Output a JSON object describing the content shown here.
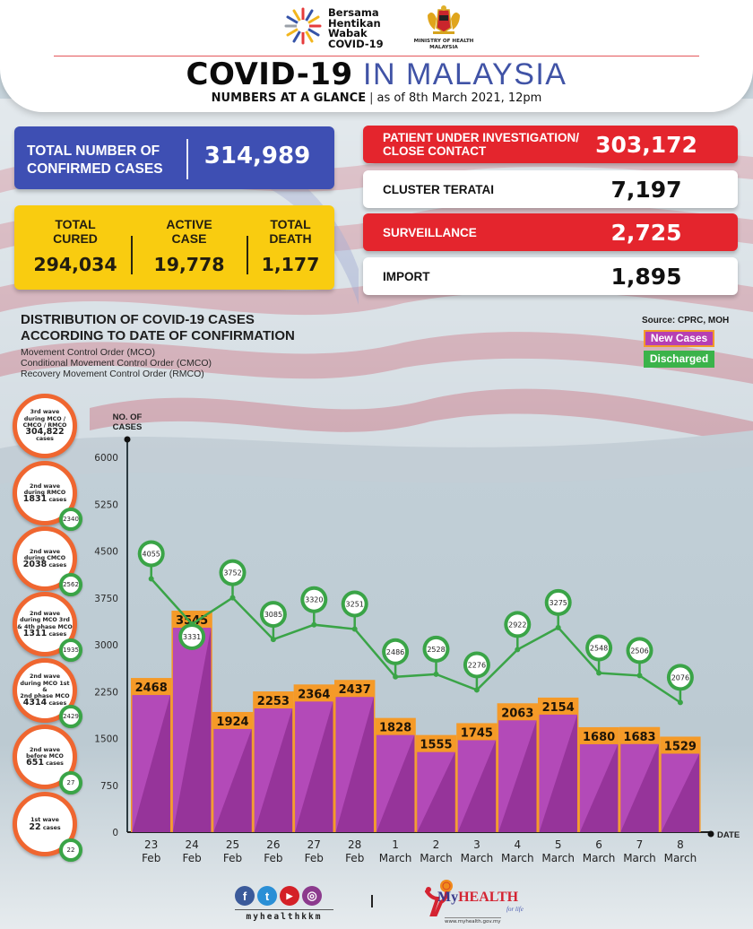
{
  "header": {
    "campaign_logo_text": [
      "Bersama",
      "Hentikan",
      "Wabak",
      "COVID-19"
    ],
    "ministry_logo_text": [
      "MINISTRY OF HEALTH",
      "MALAYSIA"
    ],
    "title_bold": "COVID-19",
    "title_light": "IN MALAYSIA",
    "subtitle_bold": "NUMBERS AT A GLANCE",
    "subtitle_separator": "|",
    "subtitle_date": "as of 8th March 2021, 12pm"
  },
  "stats": {
    "confirmed": {
      "label": "TOTAL NUMBER OF CONFIRMED CASES",
      "value": "314,989"
    },
    "cured": {
      "label": "TOTAL CURED",
      "value": "294,034"
    },
    "active": {
      "label": "ACTIVE CASE",
      "value": "19,778"
    },
    "death": {
      "label": "TOTAL DEATH",
      "value": "1,177"
    },
    "pui": {
      "label": "PATIENT UNDER INVESTIGATION/ CLOSE CONTACT",
      "value": "303,172"
    },
    "teratai": {
      "label": "CLUSTER TERATAI",
      "value": "7,197"
    },
    "surveillance": {
      "label": "SURVEILLANCE",
      "value": "2,725"
    },
    "import": {
      "label": "IMPORT",
      "value": "1,895"
    }
  },
  "colors": {
    "confirmed": "#3e4fb3",
    "yellow": "#f9cc10",
    "red": "#e4252d",
    "bar": "#b34ab8",
    "bar_dark": "#96349a",
    "bar_cap": "#f59a28",
    "discharged": "#3aa447",
    "wave_ring": "#ef6630"
  },
  "waves": [
    {
      "lines": [
        "3rd wave",
        "during MCO /",
        "CMCO / RMCO"
      ],
      "count": "304,822",
      "unit": "cases",
      "count_inline": false,
      "discharged": null
    },
    {
      "lines": [
        "2nd wave",
        "during RMCO"
      ],
      "count": "1831",
      "unit": "cases",
      "count_inline": true,
      "discharged": "2340"
    },
    {
      "lines": [
        "2nd wave",
        "during CMCO"
      ],
      "count": "2038",
      "unit": "cases",
      "count_inline": true,
      "discharged": "2562"
    },
    {
      "lines": [
        "2nd wave",
        "during MCO 3rd",
        "& 4th phase MCO"
      ],
      "count": "1311",
      "unit": "cases",
      "count_inline": true,
      "discharged": "1935"
    },
    {
      "lines": [
        "2nd wave",
        "during MCO 1st &",
        "2nd phase MCO"
      ],
      "count": "4314",
      "unit": "cases",
      "count_inline": true,
      "discharged": "2429"
    },
    {
      "lines": [
        "2nd wave",
        "before MCO"
      ],
      "count": "651",
      "unit": "cases",
      "count_inline": true,
      "discharged": "27"
    },
    {
      "lines": [
        "1st wave"
      ],
      "count": "22",
      "unit": "cases",
      "count_inline": true,
      "discharged": "22"
    }
  ],
  "chart_data": {
    "type": "bar",
    "title": "DISTRIBUTION OF COVID-19 CASES ACCORDING TO DATE OF CONFIRMATION",
    "subtitle_lines": [
      "Movement Control Order (MCO)",
      "Conditional Movement Control Order (CMCO)",
      "Recovery Movement Control Order (RMCO)"
    ],
    "source": "Source: CPRC, MOH",
    "legend": [
      {
        "name": "New Cases",
        "color": "#b34ab8"
      },
      {
        "name": "Discharged",
        "color": "#3aa447"
      }
    ],
    "legend_position": "top-right",
    "ylabel": "NO. OF CASES",
    "xlabel": "DATE",
    "ylim": [
      0,
      6000
    ],
    "yticks": [
      0,
      750,
      1500,
      2250,
      3000,
      3750,
      4500,
      5250,
      6000
    ],
    "categories": [
      [
        "23",
        "Feb"
      ],
      [
        "24",
        "Feb"
      ],
      [
        "25",
        "Feb"
      ],
      [
        "26",
        "Feb"
      ],
      [
        "27",
        "Feb"
      ],
      [
        "28",
        "Feb"
      ],
      [
        "1",
        "March"
      ],
      [
        "2",
        "March"
      ],
      [
        "3",
        "March"
      ],
      [
        "4",
        "March"
      ],
      [
        "5",
        "March"
      ],
      [
        "6",
        "March"
      ],
      [
        "7",
        "March"
      ],
      [
        "8",
        "March"
      ]
    ],
    "series": [
      {
        "name": "New Cases",
        "type": "bar",
        "values": [
          2468,
          3545,
          1924,
          2253,
          2364,
          2437,
          1828,
          1555,
          1745,
          2063,
          2154,
          1680,
          1683,
          1529
        ]
      },
      {
        "name": "Discharged",
        "type": "line",
        "values": [
          4055,
          3331,
          3752,
          3085,
          3320,
          3251,
          2486,
          2528,
          2276,
          2922,
          3275,
          2548,
          2506,
          2076
        ]
      }
    ],
    "grid": false
  },
  "footer": {
    "social_icons": [
      "facebook-icon",
      "twitter-icon",
      "youtube-icon",
      "instagram-icon"
    ],
    "social_glyphs": [
      "f",
      "t",
      "▶",
      "◎"
    ],
    "handle": "myhealthkkm",
    "separator": "|",
    "brand_my": "My",
    "brand_health": "HEALTH",
    "brand_tagline": "for life",
    "brand_url": "www.myhealth.gov.my"
  }
}
